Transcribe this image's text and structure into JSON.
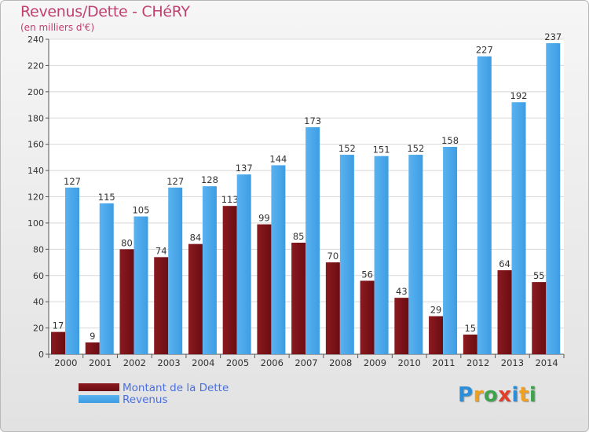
{
  "header": {
    "title": "Revenus/Dette - CHéRY",
    "subtitle": "(en milliers d'€)"
  },
  "colors": {
    "dette": "#6b0d12",
    "revenus": "#3d9de3",
    "title": "#c04070",
    "legend_text": "#4a6fe0"
  },
  "chart_data": {
    "type": "bar",
    "title": "Revenus/Dette - CHéRY",
    "subtitle": "(en milliers d'€)",
    "xlabel": "",
    "ylabel": "",
    "categories": [
      "2000",
      "2001",
      "2002",
      "2003",
      "2004",
      "2005",
      "2006",
      "2007",
      "2008",
      "2009",
      "2010",
      "2011",
      "2012",
      "2013",
      "2014"
    ],
    "series": [
      {
        "name": "Montant de la Dette",
        "values": [
          17,
          9,
          80,
          74,
          84,
          113,
          99,
          85,
          70,
          56,
          43,
          29,
          15,
          64,
          55
        ]
      },
      {
        "name": "Revenus",
        "values": [
          127,
          115,
          105,
          127,
          128,
          137,
          144,
          173,
          152,
          151,
          152,
          158,
          227,
          192,
          237
        ]
      }
    ],
    "ylim": [
      0,
      240
    ],
    "yticks": [
      0,
      20,
      40,
      60,
      80,
      100,
      120,
      140,
      160,
      180,
      200,
      220,
      240
    ],
    "grid": true,
    "legend": "bottom-left"
  },
  "legend": {
    "items": [
      {
        "label": "Montant de la Dette"
      },
      {
        "label": "Revenus"
      }
    ]
  },
  "logo": {
    "text": "Proxiti"
  }
}
